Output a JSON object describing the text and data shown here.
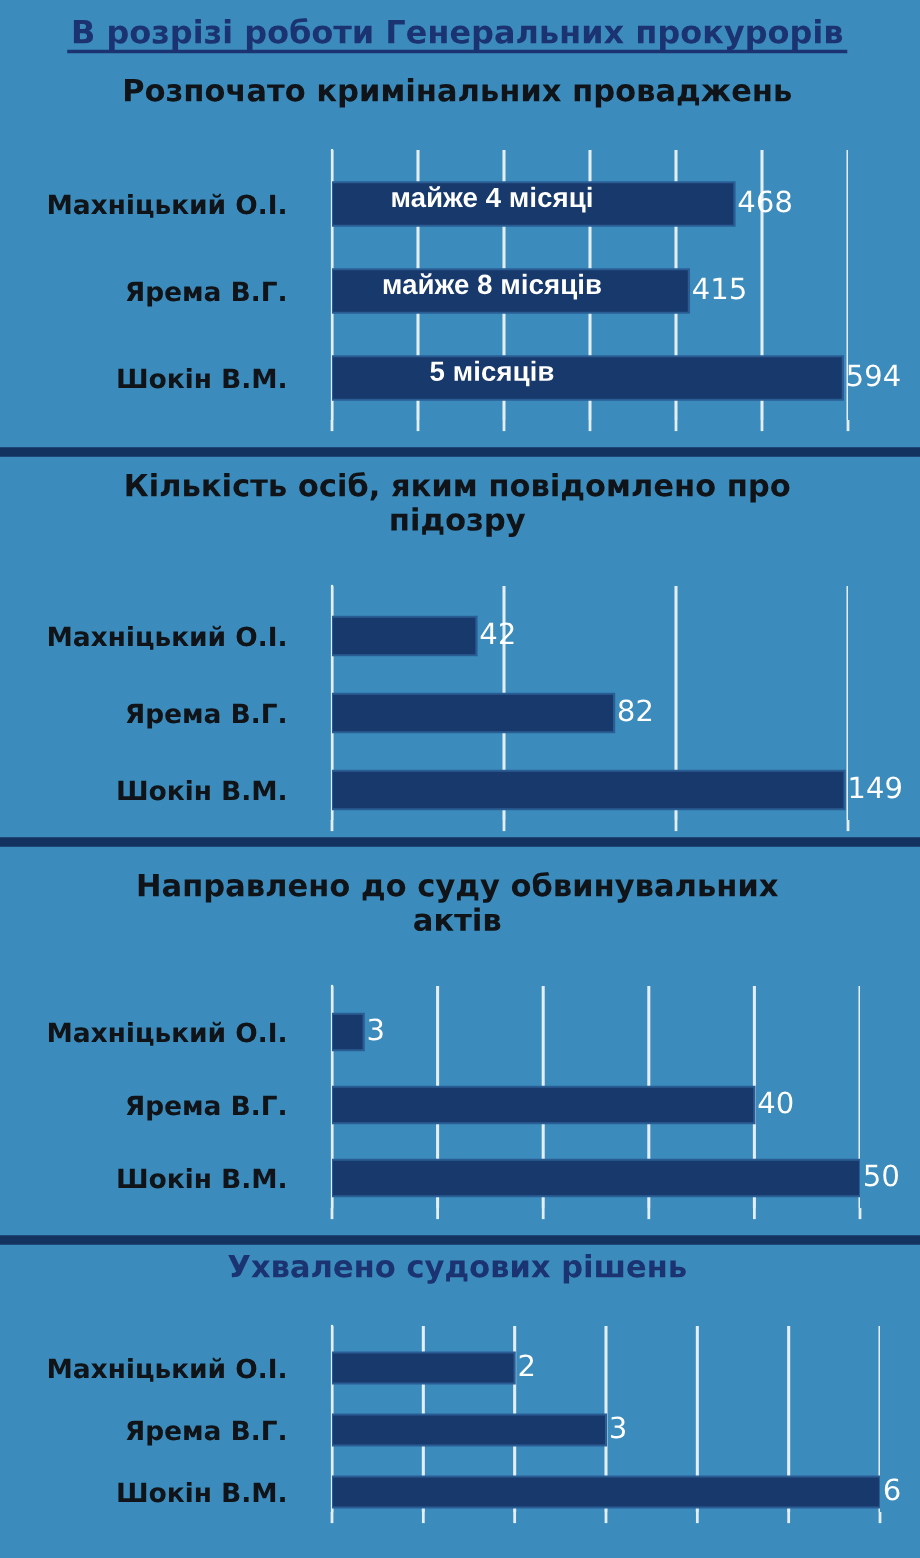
{
  "chart_data": [
    {
      "type": "bar",
      "orientation": "horizontal",
      "title": "В розрізі роботи Генеральних прокурорів",
      "subtitle": "Розпочато кримінальних проваджень",
      "categories": [
        "Махніцький О.І.",
        "Ярема В.Г.",
        "Шокін В.М."
      ],
      "values": [
        468,
        415,
        594
      ],
      "color": "#17396b",
      "data_labels": true,
      "xlim": [
        0,
        600
      ],
      "xticks": [
        {
          "value": 0,
          "label": null
        },
        {
          "value": 100,
          "label": null
        },
        {
          "value": 200,
          "label": null
        },
        {
          "value": 300,
          "label": null
        },
        {
          "value": 400,
          "label": null
        },
        {
          "value": 500,
          "label": null
        },
        {
          "value": 600,
          "label": null
        }
      ],
      "grid": "x",
      "tick_labels": "y",
      "annotations": [
        "майже 4 місяці",
        "майже 8 місяців",
        "5 місяців"
      ]
    },
    {
      "type": "bar",
      "orientation": "horizontal",
      "title": "Кількість осіб, яким повідомлено про підозру",
      "categories": [
        "Махніцький О.І.",
        "Ярема В.Г.",
        "Шокін В.М."
      ],
      "values": [
        42,
        82,
        149
      ],
      "color": "#17396b",
      "data_labels": true,
      "xlim": [
        0,
        150
      ],
      "xticks": [
        {
          "value": 0,
          "label": null
        },
        {
          "value": 50,
          "label": null
        },
        {
          "value": 100,
          "label": null
        },
        {
          "value": 150,
          "label": null
        }
      ],
      "grid": "x",
      "tick_labels": "y"
    },
    {
      "type": "bar",
      "orientation": "horizontal",
      "title": "Направлено до суду обвинувальних актів",
      "categories": [
        "Махніцький О.І.",
        "Ярема В.Г.",
        "Шокін В.М."
      ],
      "values": [
        3,
        40,
        50
      ],
      "color": "#17396b",
      "data_labels": true,
      "xlim": [
        0,
        50
      ],
      "xticks": [
        {
          "value": 0,
          "label": null
        },
        {
          "value": 10,
          "label": null
        },
        {
          "value": 20,
          "label": null
        },
        {
          "value": 30,
          "label": null
        },
        {
          "value": 40,
          "label": null
        },
        {
          "value": 50,
          "label": null
        }
      ],
      "grid": "x",
      "tick_labels": "y"
    },
    {
      "type": "bar",
      "orientation": "horizontal",
      "title": "Ухвалено судових рішень",
      "categories": [
        "Махніцький О.І.",
        "Ярема В.Г.",
        "Шокін В.М."
      ],
      "values": [
        2,
        3,
        6
      ],
      "color": "#17396b",
      "data_labels": true,
      "xlim": [
        0,
        6
      ],
      "xticks": [
        {
          "value": 0,
          "label": null
        },
        {
          "value": 1,
          "label": null
        },
        {
          "value": 2,
          "label": null
        },
        {
          "value": 3,
          "label": null
        },
        {
          "value": 4,
          "label": null
        },
        {
          "value": 5,
          "label": null
        },
        {
          "value": 6,
          "label": null
        }
      ],
      "grid": "x",
      "tick_labels": "y"
    }
  ]
}
